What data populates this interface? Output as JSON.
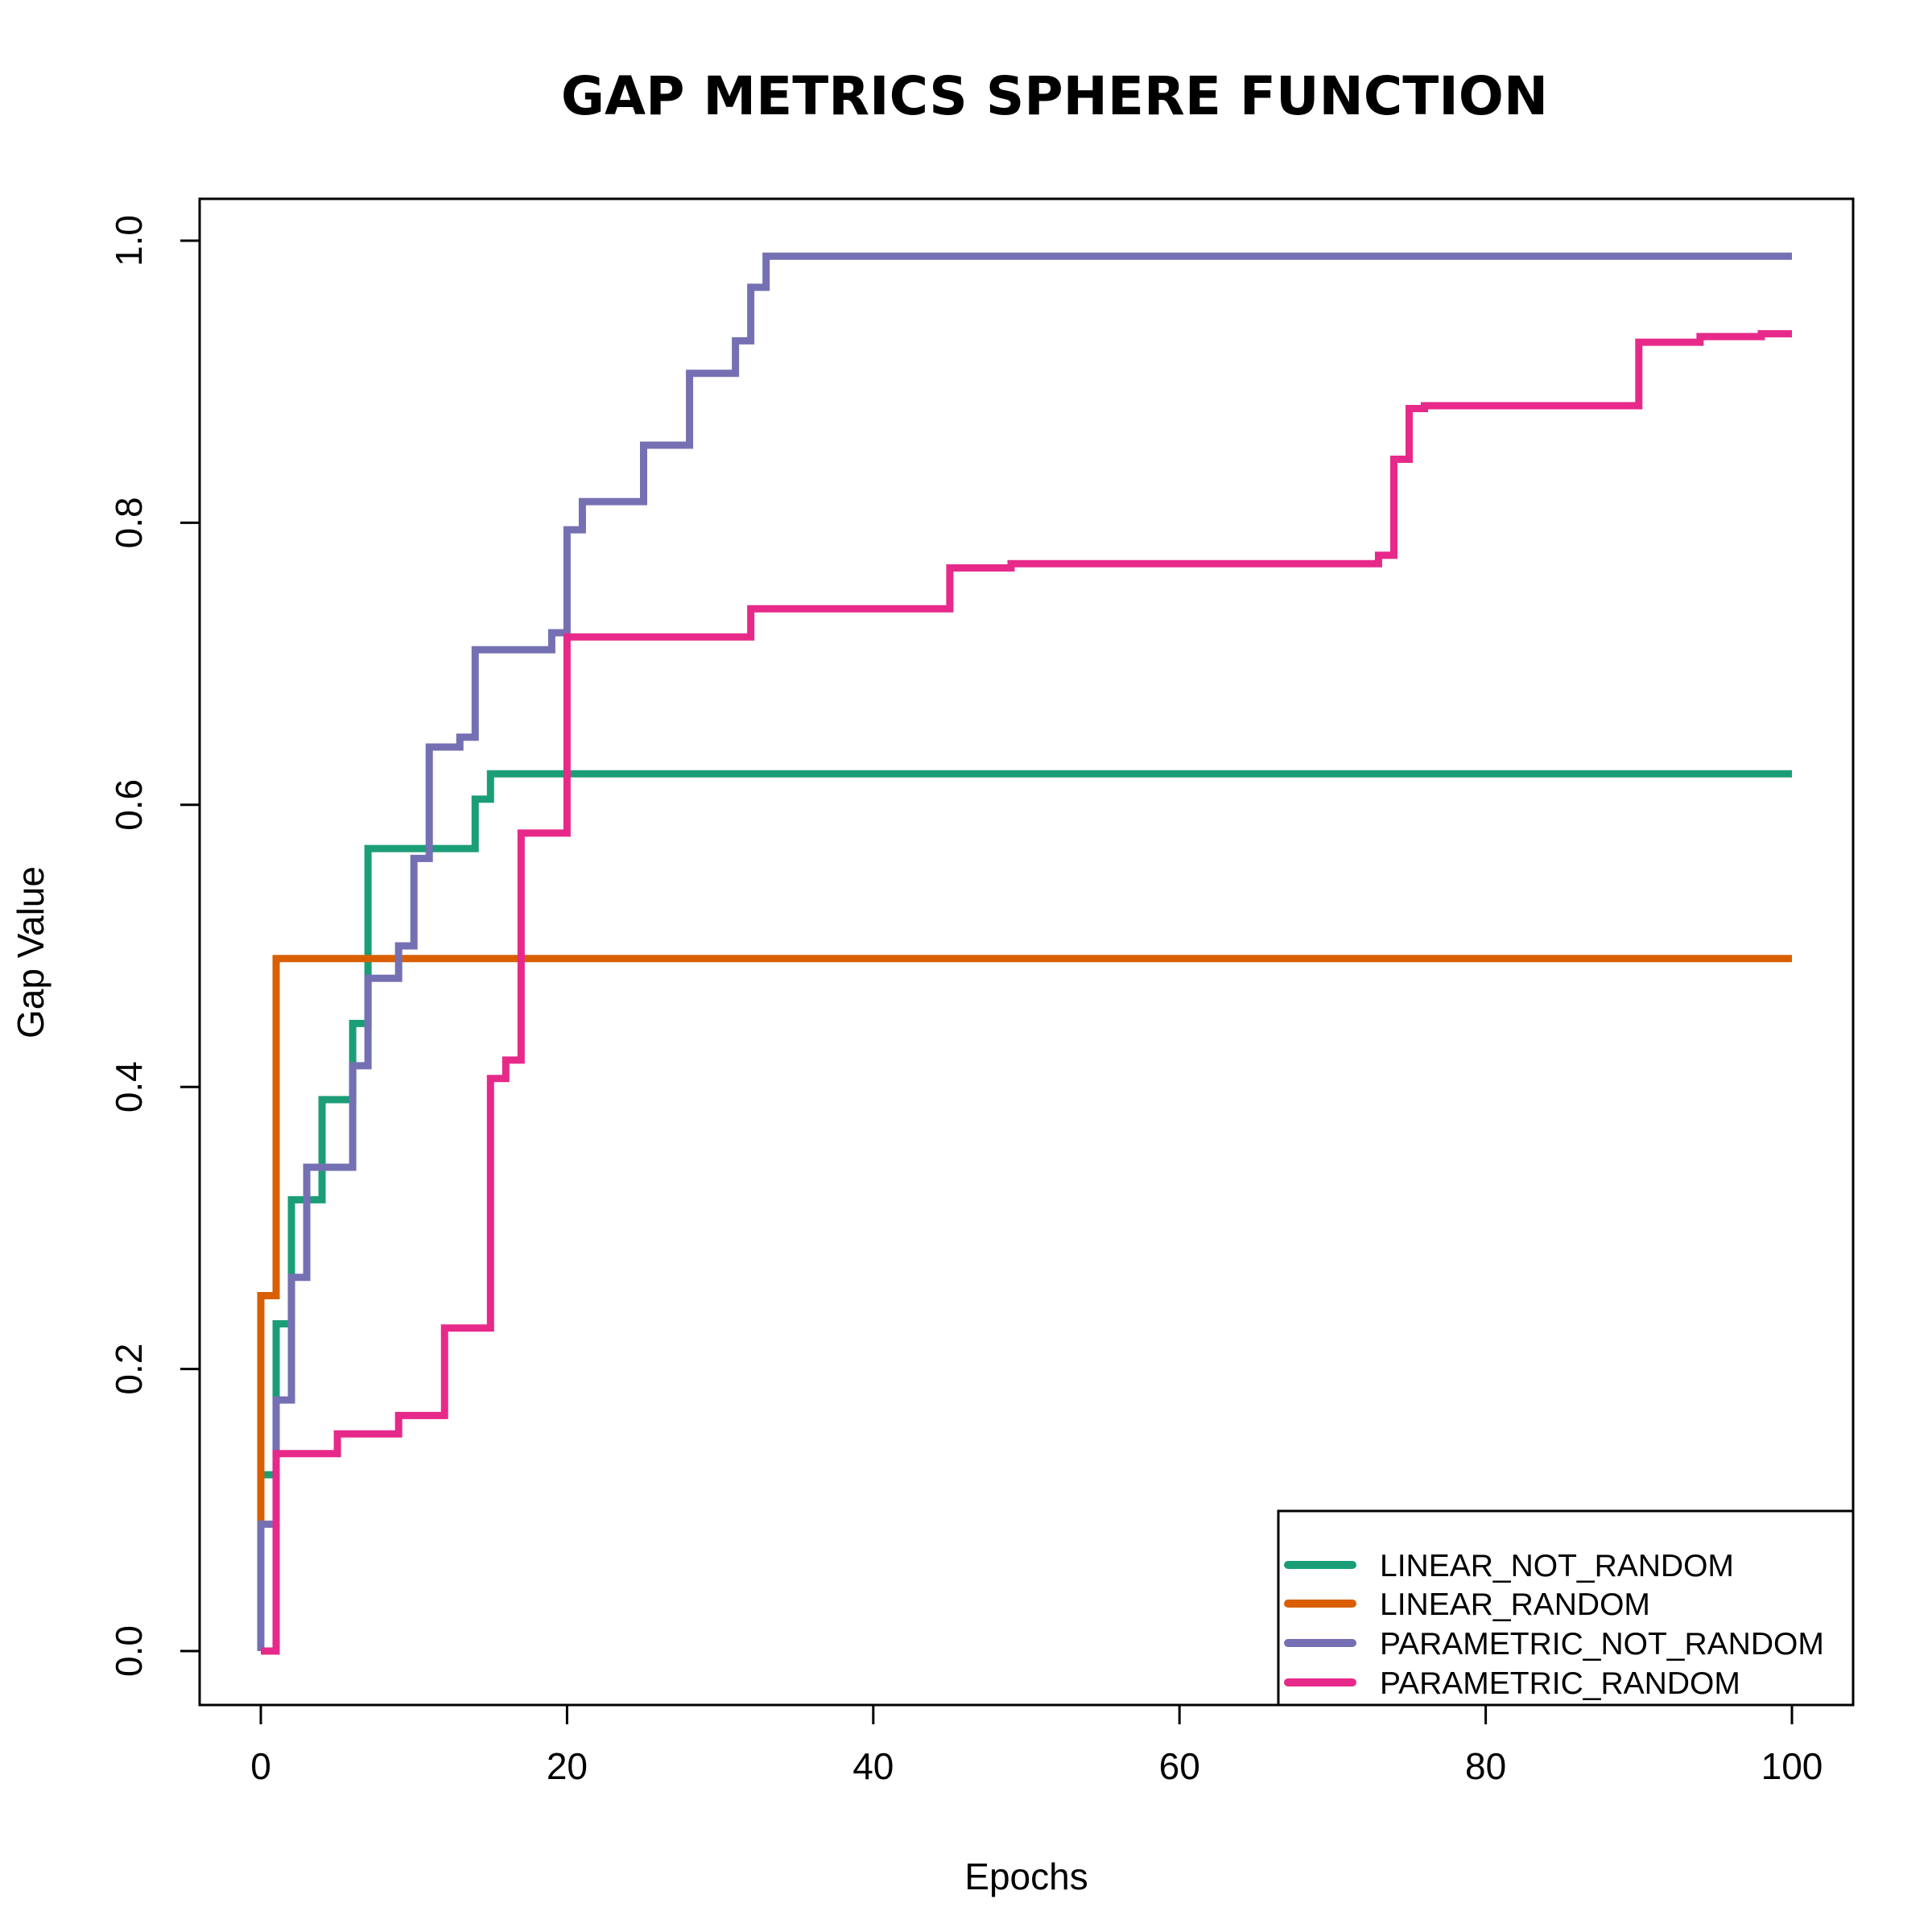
{
  "chart_data": {
    "type": "line",
    "title": "GAP METRICS SPHERE FUNCTION",
    "xlabel": "Epochs",
    "ylabel": "Gap Value",
    "xlim": [
      0,
      100
    ],
    "ylim": [
      0,
      1
    ],
    "x_ticks": [
      0,
      20,
      40,
      60,
      80,
      100
    ],
    "y_ticks": [
      0.0,
      0.2,
      0.4,
      0.6,
      0.8,
      1.0
    ],
    "x_tick_labels": [
      "0",
      "20",
      "40",
      "60",
      "80",
      "100"
    ],
    "y_tick_labels": [
      "0.0",
      "0.2",
      "0.4",
      "0.6",
      "0.8",
      "1.0"
    ],
    "step": true,
    "grid": false,
    "legend_position": "bottom-right",
    "series": [
      {
        "name": "LINEAR_NOT_RANDOM",
        "color": "#1B9E77",
        "points": [
          [
            0,
            0
          ],
          [
            0,
            0.125
          ],
          [
            1,
            0.125
          ],
          [
            1,
            0.232
          ],
          [
            2,
            0.232
          ],
          [
            2,
            0.32
          ],
          [
            4,
            0.32
          ],
          [
            4,
            0.391
          ],
          [
            6,
            0.391
          ],
          [
            6,
            0.445
          ],
          [
            7,
            0.445
          ],
          [
            7,
            0.569
          ],
          [
            14,
            0.569
          ],
          [
            14,
            0.604
          ],
          [
            15,
            0.604
          ],
          [
            15,
            0.622
          ],
          [
            100,
            0.622
          ]
        ]
      },
      {
        "name": "LINEAR_RANDOM",
        "color": "#D95F02",
        "points": [
          [
            0,
            0.09
          ],
          [
            0,
            0.252
          ],
          [
            1,
            0.252
          ],
          [
            1,
            0.491
          ],
          [
            100,
            0.491
          ]
        ]
      },
      {
        "name": "PARAMETRIC_NOT_RANDOM",
        "color": "#7570B3",
        "points": [
          [
            0,
            0
          ],
          [
            0,
            0.09
          ],
          [
            1,
            0.09
          ],
          [
            1,
            0.178
          ],
          [
            2,
            0.178
          ],
          [
            2,
            0.265
          ],
          [
            3,
            0.265
          ],
          [
            3,
            0.343
          ],
          [
            6,
            0.343
          ],
          [
            6,
            0.415
          ],
          [
            7,
            0.415
          ],
          [
            7,
            0.477
          ],
          [
            9,
            0.477
          ],
          [
            9,
            0.5
          ],
          [
            10,
            0.5
          ],
          [
            10,
            0.562
          ],
          [
            11,
            0.562
          ],
          [
            11,
            0.641
          ],
          [
            13,
            0.641
          ],
          [
            13,
            0.648
          ],
          [
            14,
            0.648
          ],
          [
            14,
            0.71
          ],
          [
            19,
            0.71
          ],
          [
            19,
            0.722
          ],
          [
            20,
            0.722
          ],
          [
            20,
            0.795
          ],
          [
            21,
            0.795
          ],
          [
            21,
            0.815
          ],
          [
            25,
            0.815
          ],
          [
            25,
            0.855
          ],
          [
            28,
            0.855
          ],
          [
            28,
            0.906
          ],
          [
            31,
            0.906
          ],
          [
            31,
            0.929
          ],
          [
            32,
            0.929
          ],
          [
            32,
            0.967
          ],
          [
            33,
            0.967
          ],
          [
            33,
            0.989
          ],
          [
            100,
            0.989
          ]
        ]
      },
      {
        "name": "PARAMETRIC_RANDOM",
        "color": "#E7298A",
        "points": [
          [
            0,
            0
          ],
          [
            1,
            0
          ],
          [
            1,
            0.14
          ],
          [
            5,
            0.14
          ],
          [
            5,
            0.154
          ],
          [
            9,
            0.154
          ],
          [
            9,
            0.167
          ],
          [
            12,
            0.167
          ],
          [
            12,
            0.229
          ],
          [
            15,
            0.229
          ],
          [
            15,
            0.406
          ],
          [
            16,
            0.406
          ],
          [
            16,
            0.419
          ],
          [
            17,
            0.419
          ],
          [
            17,
            0.58
          ],
          [
            20,
            0.58
          ],
          [
            20,
            0.719
          ],
          [
            32,
            0.719
          ],
          [
            32,
            0.739
          ],
          [
            45,
            0.739
          ],
          [
            45,
            0.768
          ],
          [
            49,
            0.768
          ],
          [
            49,
            0.771
          ],
          [
            73,
            0.771
          ],
          [
            73,
            0.777
          ],
          [
            74,
            0.777
          ],
          [
            74,
            0.845
          ],
          [
            75,
            0.845
          ],
          [
            75,
            0.881
          ],
          [
            76,
            0.881
          ],
          [
            76,
            0.883
          ],
          [
            90,
            0.883
          ],
          [
            90,
            0.928
          ],
          [
            94,
            0.928
          ],
          [
            94,
            0.932
          ],
          [
            98,
            0.932
          ],
          [
            98,
            0.934
          ],
          [
            100,
            0.934
          ]
        ]
      }
    ]
  }
}
